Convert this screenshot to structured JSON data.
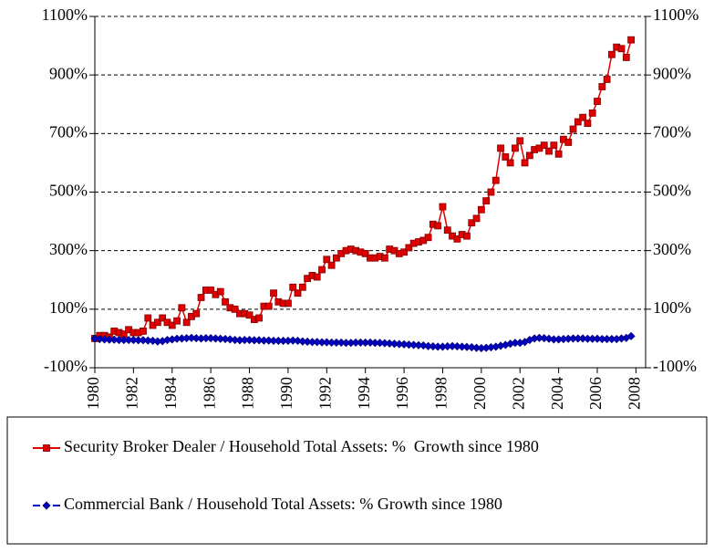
{
  "chart_data": {
    "type": "line",
    "x": [
      1980,
      1980.25,
      1980.5,
      1980.75,
      1981,
      1981.25,
      1981.5,
      1981.75,
      1982,
      1982.25,
      1982.5,
      1982.75,
      1983,
      1983.25,
      1983.5,
      1983.75,
      1984,
      1984.25,
      1984.5,
      1984.75,
      1985,
      1985.25,
      1985.5,
      1985.75,
      1986,
      1986.25,
      1986.5,
      1986.75,
      1987,
      1987.25,
      1987.5,
      1987.75,
      1988,
      1988.25,
      1988.5,
      1988.75,
      1989,
      1989.25,
      1989.5,
      1989.75,
      1990,
      1990.25,
      1990.5,
      1990.75,
      1991,
      1991.25,
      1991.5,
      1991.75,
      1992,
      1992.25,
      1992.5,
      1992.75,
      1993,
      1993.25,
      1993.5,
      1993.75,
      1994,
      1994.25,
      1994.5,
      1994.75,
      1995,
      1995.25,
      1995.5,
      1995.75,
      1996,
      1996.25,
      1996.5,
      1996.75,
      1997,
      1997.25,
      1997.5,
      1997.75,
      1998,
      1998.25,
      1998.5,
      1998.75,
      1999,
      1999.25,
      1999.5,
      1999.75,
      2000,
      2000.25,
      2000.5,
      2000.75,
      2001,
      2001.25,
      2001.5,
      2001.75,
      2002,
      2002.25,
      2002.5,
      2002.75,
      2003,
      2003.25,
      2003.5,
      2003.75,
      2004,
      2004.25,
      2004.5,
      2004.75,
      2005,
      2005.25,
      2005.5,
      2005.75,
      2006,
      2006.25,
      2006.5,
      2006.75,
      2007,
      2007.25,
      2007.5,
      2007.75
    ],
    "series": [
      {
        "name": "Security Broker Dealer / Household Total Assets: %  Growth since 1980",
        "color": "#e00000",
        "marker": "square",
        "values": [
          0,
          10,
          10,
          5,
          25,
          20,
          15,
          30,
          20,
          20,
          25,
          70,
          45,
          55,
          70,
          55,
          45,
          60,
          105,
          55,
          75,
          85,
          140,
          165,
          165,
          150,
          160,
          125,
          105,
          100,
          85,
          85,
          80,
          65,
          70,
          110,
          110,
          155,
          125,
          120,
          120,
          175,
          155,
          175,
          205,
          215,
          210,
          235,
          270,
          250,
          275,
          290,
          300,
          305,
          300,
          295,
          290,
          275,
          275,
          280,
          275,
          305,
          300,
          290,
          295,
          310,
          325,
          330,
          335,
          345,
          390,
          385,
          450,
          370,
          350,
          340,
          355,
          350,
          395,
          410,
          440,
          470,
          500,
          540,
          650,
          620,
          600,
          650,
          675,
          600,
          625,
          645,
          650,
          660,
          640,
          660,
          630,
          680,
          670,
          715,
          740,
          755,
          735,
          770,
          810,
          860,
          885,
          970,
          995,
          990,
          960,
          1020
        ]
      },
      {
        "name": "Commercial Bank / Household Total Assets: % Growth since 1980",
        "color": "#0000c0",
        "marker": "diamond",
        "values": [
          0,
          -2,
          -3,
          -4,
          -4,
          -5,
          -5,
          -5,
          -5,
          -6,
          -6,
          -7,
          -8,
          -10,
          -9,
          -5,
          -3,
          -1,
          0,
          1,
          2,
          1,
          0,
          1,
          1,
          0,
          -1,
          -2,
          -3,
          -5,
          -6,
          -5,
          -5,
          -6,
          -6,
          -7,
          -7,
          -8,
          -8,
          -8,
          -8,
          -7,
          -8,
          -10,
          -11,
          -12,
          -12,
          -13,
          -13,
          -14,
          -14,
          -14,
          -15,
          -15,
          -14,
          -14,
          -14,
          -14,
          -15,
          -15,
          -16,
          -17,
          -18,
          -19,
          -20,
          -21,
          -22,
          -23,
          -24,
          -26,
          -27,
          -28,
          -28,
          -27,
          -26,
          -27,
          -28,
          -29,
          -30,
          -32,
          -33,
          -32,
          -30,
          -28,
          -25,
          -22,
          -18,
          -15,
          -15,
          -12,
          -5,
          0,
          2,
          1,
          -1,
          -3,
          -3,
          -2,
          -1,
          0,
          0,
          0,
          -1,
          -1,
          -1,
          -2,
          -2,
          -2,
          -2,
          0,
          2,
          8
        ]
      }
    ],
    "xlim": [
      1980,
      2008.5
    ],
    "xticks": [
      1980,
      1982,
      1984,
      1986,
      1988,
      1990,
      1992,
      1994,
      1996,
      1998,
      2000,
      2002,
      2004,
      2006,
      2008
    ],
    "ylim": [
      -100,
      1100
    ],
    "yticks": [
      {
        "value": -100,
        "label": "-100%"
      },
      {
        "value": 100,
        "label": "100%"
      },
      {
        "value": 300,
        "label": "300%"
      },
      {
        "value": 500,
        "label": "500%"
      },
      {
        "value": 700,
        "label": "700%"
      },
      {
        "value": 900,
        "label": "900%"
      },
      {
        "value": 1100,
        "label": "1100%"
      }
    ],
    "y2lim": [
      -100,
      1100
    ],
    "y2ticks": [
      {
        "value": -100,
        "label": "-100%"
      },
      {
        "value": 100,
        "label": "100%"
      },
      {
        "value": 300,
        "label": "300%"
      },
      {
        "value": 500,
        "label": "500%"
      },
      {
        "value": 700,
        "label": "700%"
      },
      {
        "value": 900,
        "label": "900%"
      },
      {
        "value": 1100,
        "label": "1100%"
      }
    ],
    "grid": true,
    "legend": "bottom"
  }
}
